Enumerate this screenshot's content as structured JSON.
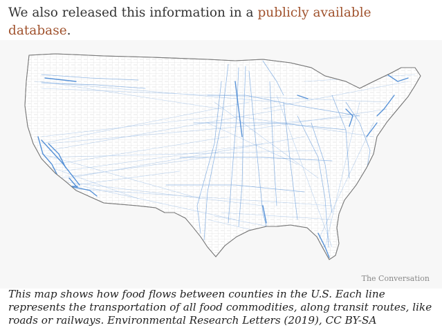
{
  "intro": {
    "text_before": "We also released this information in a ",
    "link_text": "publicly available database",
    "text_after": "."
  },
  "figure": {
    "credit": "The Conversation",
    "caption": "This map shows how food flows between counties in the U.S. Each line represents the transportation of all food commodities, along transit routes, like roads or railways. Environmental Research Letters (2019), CC BY-SA"
  },
  "colors": {
    "link": "#a0522d",
    "flow": "#3a7fd1",
    "county_border": "#c9c9c9",
    "land": "#ffffff",
    "background": "#f7f7f7"
  }
}
